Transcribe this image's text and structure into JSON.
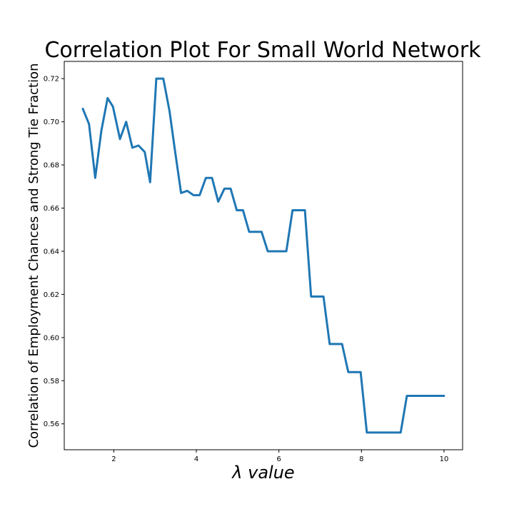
{
  "chart_data": {
    "type": "line",
    "title": "Correlation Plot For Small World Network",
    "xlabel": "λ value",
    "ylabel": "Correlation of Employment Chances and Strong Tie Fraction",
    "xlim": [
      0.8,
      10.45
    ],
    "ylim": [
      0.548,
      0.728
    ],
    "xticks": [
      "2",
      "4",
      "6",
      "8",
      "10"
    ],
    "yticks": [
      "0.56",
      "0.58",
      "0.60",
      "0.62",
      "0.64",
      "0.66",
      "0.68",
      "0.70",
      "0.72"
    ],
    "grid": false,
    "colors": {
      "line": "#1f77b4"
    },
    "series": [
      {
        "x": [
          1.25,
          1.4,
          1.55,
          1.7,
          1.85,
          1.98,
          2.15,
          2.3,
          2.45,
          2.6,
          2.75,
          2.88,
          3.03,
          3.2,
          3.35,
          3.48,
          3.63,
          3.78,
          3.93,
          4.08,
          4.23,
          4.38,
          4.53,
          4.68,
          4.83,
          4.98,
          5.13,
          5.28,
          5.43,
          5.58,
          5.73,
          5.88,
          6.03,
          6.18,
          6.33,
          6.48,
          6.63,
          6.78,
          6.93,
          7.08,
          7.23,
          7.38,
          7.53,
          7.68,
          7.83,
          7.98,
          8.13,
          8.3,
          8.5,
          8.7,
          8.95,
          9.1,
          9.3,
          9.6,
          10.0
        ],
        "y": [
          0.706,
          0.699,
          0.674,
          0.696,
          0.711,
          0.707,
          0.692,
          0.7,
          0.688,
          0.689,
          0.686,
          0.672,
          0.72,
          0.72,
          0.705,
          0.687,
          0.667,
          0.668,
          0.666,
          0.666,
          0.674,
          0.674,
          0.663,
          0.669,
          0.669,
          0.659,
          0.659,
          0.649,
          0.649,
          0.649,
          0.64,
          0.64,
          0.64,
          0.64,
          0.659,
          0.659,
          0.659,
          0.619,
          0.619,
          0.619,
          0.597,
          0.597,
          0.597,
          0.584,
          0.584,
          0.584,
          0.556,
          0.556,
          0.556,
          0.556,
          0.556,
          0.573,
          0.573,
          0.573,
          0.573
        ]
      }
    ]
  }
}
